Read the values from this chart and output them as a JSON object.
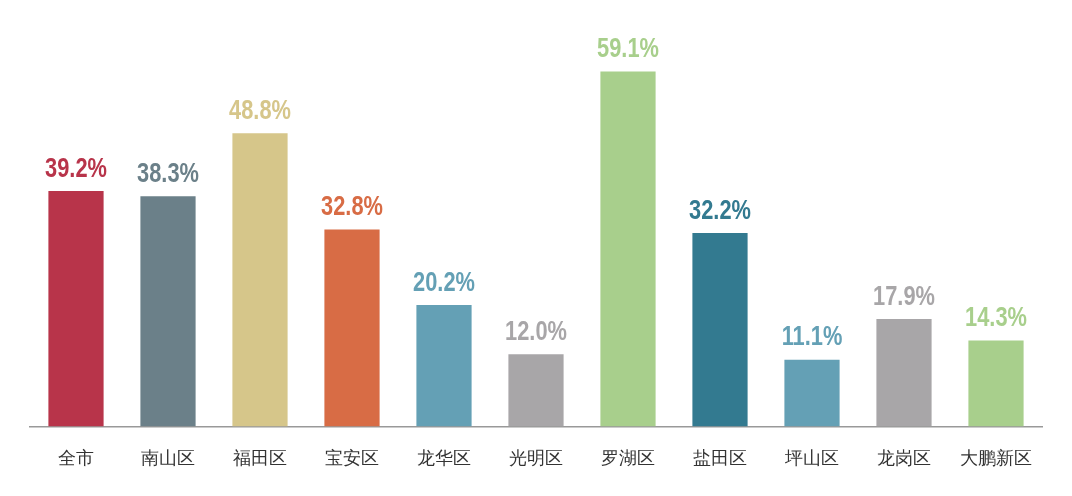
{
  "chart_data": {
    "type": "bar",
    "categories": [
      "全市",
      "南山区",
      "福田区",
      "宝安区",
      "龙华区",
      "光明区",
      "罗湖区",
      "盐田区",
      "坪山区",
      "龙岗区",
      "大鹏新区"
    ],
    "values": [
      39.2,
      38.3,
      48.8,
      32.8,
      20.2,
      12.0,
      59.1,
      32.2,
      11.1,
      17.9,
      14.3
    ],
    "value_labels": [
      "39.2%",
      "38.3%",
      "48.8%",
      "32.8%",
      "20.2%",
      "12.0%",
      "59.1%",
      "32.2%",
      "11.1%",
      "17.9%",
      "14.3%"
    ],
    "colors": [
      "#b8344a",
      "#6b8089",
      "#d6c68a",
      "#d86c45",
      "#64a0b5",
      "#a8a6a8",
      "#a8cf8c",
      "#337a90",
      "#64a0b5",
      "#a8a6a8",
      "#a8cf8c"
    ],
    "tick_labels": "x",
    "grid": false,
    "legend": false
  }
}
